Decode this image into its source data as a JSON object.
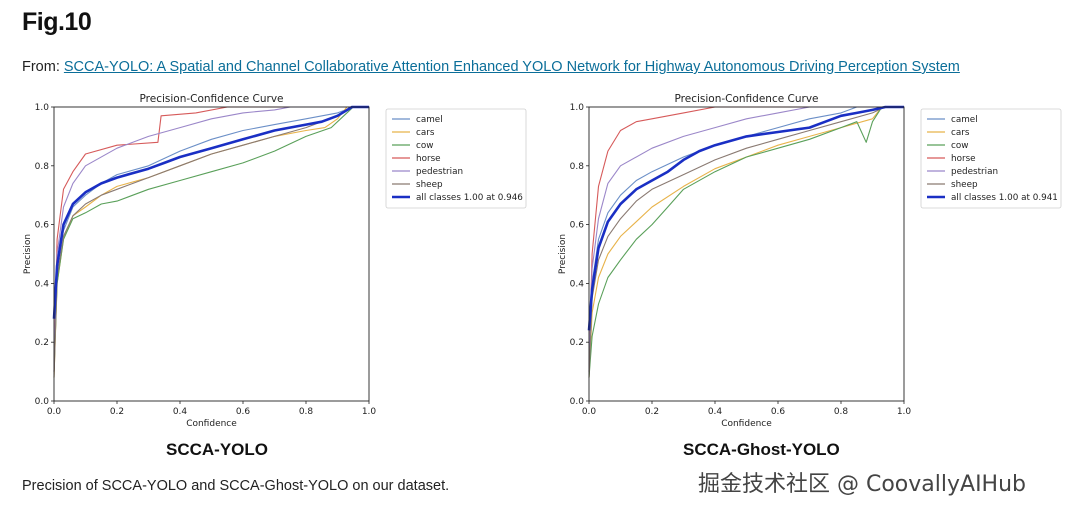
{
  "figure": {
    "label": "Fig.10",
    "from_prefix": "From: ",
    "paper_link": "SCCA-YOLO: A Spatial and Channel Collaborative Attention Enhanced YOLO Network for Highway Autonomous Driving Perception System",
    "caption": "Precision of SCCA-YOLO and SCCA-Ghost-YOLO on our dataset.",
    "watermark": "掘金技术社区 @ CoovallyAIHub"
  },
  "colors": {
    "camel": "#6b8fc7",
    "cars": "#e8b34a",
    "cow": "#5aa05a",
    "horse": "#d65a5a",
    "pedestrian": "#9b87c9",
    "sheep": "#8a7a72",
    "all": "#1a2fc4",
    "link": "#0b6e99"
  },
  "chart_data": [
    {
      "type": "line",
      "panel_label": "SCCA-YOLO",
      "title": "Precision-Confidence Curve",
      "xlabel": "Confidence",
      "ylabel": "Precision",
      "xlim": [
        0,
        1
      ],
      "ylim": [
        0,
        1
      ],
      "xticks": [
        "0.0",
        "0.2",
        "0.4",
        "0.6",
        "0.8",
        "1.0"
      ],
      "yticks": [
        "0.0",
        "0.2",
        "0.4",
        "0.6",
        "0.8",
        "1.0"
      ],
      "grid": false,
      "legend_position": "outside-right",
      "series": [
        {
          "name": "camel",
          "color_key": "camel",
          "width": 1.1,
          "points": [
            [
              0,
              0.1
            ],
            [
              0.01,
              0.45
            ],
            [
              0.03,
              0.58
            ],
            [
              0.06,
              0.66
            ],
            [
              0.1,
              0.7
            ],
            [
              0.15,
              0.74
            ],
            [
              0.2,
              0.77
            ],
            [
              0.3,
              0.8
            ],
            [
              0.4,
              0.85
            ],
            [
              0.5,
              0.89
            ],
            [
              0.6,
              0.92
            ],
            [
              0.7,
              0.94
            ],
            [
              0.8,
              0.96
            ],
            [
              0.9,
              0.98
            ],
            [
              0.95,
              1.0
            ],
            [
              1.0,
              1.0
            ]
          ]
        },
        {
          "name": "cars",
          "color_key": "cars",
          "width": 1.1,
          "points": [
            [
              0,
              0.08
            ],
            [
              0.01,
              0.4
            ],
            [
              0.03,
              0.55
            ],
            [
              0.06,
              0.63
            ],
            [
              0.1,
              0.66
            ],
            [
              0.15,
              0.7
            ],
            [
              0.2,
              0.73
            ],
            [
              0.3,
              0.76
            ],
            [
              0.4,
              0.8
            ],
            [
              0.5,
              0.84
            ],
            [
              0.6,
              0.87
            ],
            [
              0.7,
              0.9
            ],
            [
              0.8,
              0.92
            ],
            [
              0.86,
              0.93
            ],
            [
              0.9,
              0.96
            ],
            [
              0.93,
              1.0
            ],
            [
              1.0,
              1.0
            ]
          ]
        },
        {
          "name": "cow",
          "color_key": "cow",
          "width": 1.1,
          "points": [
            [
              0,
              0.1
            ],
            [
              0.01,
              0.4
            ],
            [
              0.03,
              0.55
            ],
            [
              0.06,
              0.62
            ],
            [
              0.1,
              0.64
            ],
            [
              0.15,
              0.67
            ],
            [
              0.2,
              0.68
            ],
            [
              0.25,
              0.7
            ],
            [
              0.3,
              0.72
            ],
            [
              0.4,
              0.75
            ],
            [
              0.5,
              0.78
            ],
            [
              0.6,
              0.81
            ],
            [
              0.7,
              0.85
            ],
            [
              0.8,
              0.9
            ],
            [
              0.88,
              0.93
            ],
            [
              0.92,
              0.97
            ],
            [
              0.95,
              1.0
            ],
            [
              1.0,
              1.0
            ]
          ]
        },
        {
          "name": "horse",
          "color_key": "horse",
          "width": 1.1,
          "points": [
            [
              0,
              0.1
            ],
            [
              0.01,
              0.55
            ],
            [
              0.03,
              0.72
            ],
            [
              0.06,
              0.78
            ],
            [
              0.1,
              0.84
            ],
            [
              0.2,
              0.87
            ],
            [
              0.33,
              0.88
            ],
            [
              0.34,
              0.97
            ],
            [
              0.45,
              0.98
            ],
            [
              0.55,
              1.0
            ],
            [
              1.0,
              1.0
            ]
          ]
        },
        {
          "name": "pedestrian",
          "color_key": "pedestrian",
          "width": 1.1,
          "points": [
            [
              0,
              0.1
            ],
            [
              0.01,
              0.5
            ],
            [
              0.03,
              0.66
            ],
            [
              0.06,
              0.74
            ],
            [
              0.1,
              0.8
            ],
            [
              0.2,
              0.86
            ],
            [
              0.3,
              0.9
            ],
            [
              0.4,
              0.93
            ],
            [
              0.5,
              0.96
            ],
            [
              0.6,
              0.98
            ],
            [
              0.7,
              0.99
            ],
            [
              0.75,
              1.0
            ],
            [
              1.0,
              1.0
            ]
          ]
        },
        {
          "name": "sheep",
          "color_key": "sheep",
          "width": 1.1,
          "points": [
            [
              0,
              0.08
            ],
            [
              0.01,
              0.42
            ],
            [
              0.03,
              0.56
            ],
            [
              0.06,
              0.63
            ],
            [
              0.1,
              0.67
            ],
            [
              0.15,
              0.7
            ],
            [
              0.2,
              0.72
            ],
            [
              0.3,
              0.76
            ],
            [
              0.4,
              0.8
            ],
            [
              0.5,
              0.84
            ],
            [
              0.6,
              0.87
            ],
            [
              0.7,
              0.9
            ],
            [
              0.8,
              0.93
            ],
            [
              0.9,
              0.97
            ],
            [
              0.95,
              1.0
            ],
            [
              1.0,
              1.0
            ]
          ]
        },
        {
          "name": "all classes 1.00 at 0.946",
          "color_key": "all",
          "width": 2.6,
          "points": [
            [
              0,
              0.28
            ],
            [
              0.01,
              0.46
            ],
            [
              0.03,
              0.6
            ],
            [
              0.06,
              0.67
            ],
            [
              0.1,
              0.71
            ],
            [
              0.15,
              0.74
            ],
            [
              0.2,
              0.76
            ],
            [
              0.3,
              0.79
            ],
            [
              0.35,
              0.81
            ],
            [
              0.4,
              0.83
            ],
            [
              0.5,
              0.86
            ],
            [
              0.6,
              0.89
            ],
            [
              0.7,
              0.92
            ],
            [
              0.8,
              0.94
            ],
            [
              0.85,
              0.95
            ],
            [
              0.9,
              0.97
            ],
            [
              0.946,
              1.0
            ],
            [
              1.0,
              1.0
            ]
          ]
        }
      ]
    },
    {
      "type": "line",
      "panel_label": "SCCA-Ghost-YOLO",
      "title": "Precision-Confidence Curve",
      "xlabel": "Confidence",
      "ylabel": "Precision",
      "xlim": [
        0,
        1
      ],
      "ylim": [
        0,
        1
      ],
      "xticks": [
        "0.0",
        "0.2",
        "0.4",
        "0.6",
        "0.8",
        "1.0"
      ],
      "yticks": [
        "0.0",
        "0.2",
        "0.4",
        "0.6",
        "0.8",
        "1.0"
      ],
      "grid": false,
      "legend_position": "outside-right",
      "series": [
        {
          "name": "camel",
          "color_key": "camel",
          "width": 1.1,
          "points": [
            [
              0,
              0.1
            ],
            [
              0.01,
              0.4
            ],
            [
              0.03,
              0.55
            ],
            [
              0.06,
              0.64
            ],
            [
              0.1,
              0.7
            ],
            [
              0.15,
              0.75
            ],
            [
              0.2,
              0.78
            ],
            [
              0.3,
              0.83
            ],
            [
              0.4,
              0.87
            ],
            [
              0.5,
              0.9
            ],
            [
              0.6,
              0.93
            ],
            [
              0.7,
              0.96
            ],
            [
              0.8,
              0.98
            ],
            [
              0.85,
              1.0
            ],
            [
              1.0,
              1.0
            ]
          ]
        },
        {
          "name": "cars",
          "color_key": "cars",
          "width": 1.1,
          "points": [
            [
              0,
              0.08
            ],
            [
              0.01,
              0.3
            ],
            [
              0.03,
              0.42
            ],
            [
              0.06,
              0.5
            ],
            [
              0.1,
              0.56
            ],
            [
              0.15,
              0.61
            ],
            [
              0.2,
              0.66
            ],
            [
              0.3,
              0.73
            ],
            [
              0.4,
              0.79
            ],
            [
              0.5,
              0.83
            ],
            [
              0.6,
              0.87
            ],
            [
              0.7,
              0.9
            ],
            [
              0.8,
              0.93
            ],
            [
              0.9,
              0.96
            ],
            [
              0.93,
              1.0
            ],
            [
              1.0,
              1.0
            ]
          ]
        },
        {
          "name": "cow",
          "color_key": "cow",
          "width": 1.1,
          "points": [
            [
              0,
              0.08
            ],
            [
              0.01,
              0.22
            ],
            [
              0.03,
              0.33
            ],
            [
              0.06,
              0.42
            ],
            [
              0.1,
              0.48
            ],
            [
              0.15,
              0.55
            ],
            [
              0.2,
              0.6
            ],
            [
              0.25,
              0.66
            ],
            [
              0.3,
              0.72
            ],
            [
              0.4,
              0.78
            ],
            [
              0.5,
              0.83
            ],
            [
              0.6,
              0.86
            ],
            [
              0.7,
              0.89
            ],
            [
              0.8,
              0.93
            ],
            [
              0.85,
              0.95
            ],
            [
              0.88,
              0.88
            ],
            [
              0.9,
              0.95
            ],
            [
              0.93,
              1.0
            ],
            [
              1.0,
              1.0
            ]
          ]
        },
        {
          "name": "horse",
          "color_key": "horse",
          "width": 1.1,
          "points": [
            [
              0,
              0.1
            ],
            [
              0.01,
              0.5
            ],
            [
              0.03,
              0.73
            ],
            [
              0.06,
              0.85
            ],
            [
              0.1,
              0.92
            ],
            [
              0.15,
              0.95
            ],
            [
              0.2,
              0.96
            ],
            [
              0.3,
              0.98
            ],
            [
              0.4,
              1.0
            ],
            [
              1.0,
              1.0
            ]
          ]
        },
        {
          "name": "pedestrian",
          "color_key": "pedestrian",
          "width": 1.1,
          "points": [
            [
              0,
              0.1
            ],
            [
              0.01,
              0.45
            ],
            [
              0.03,
              0.62
            ],
            [
              0.06,
              0.74
            ],
            [
              0.1,
              0.8
            ],
            [
              0.2,
              0.86
            ],
            [
              0.3,
              0.9
            ],
            [
              0.4,
              0.93
            ],
            [
              0.5,
              0.96
            ],
            [
              0.6,
              0.98
            ],
            [
              0.7,
              1.0
            ],
            [
              1.0,
              1.0
            ]
          ]
        },
        {
          "name": "sheep",
          "color_key": "sheep",
          "width": 1.1,
          "points": [
            [
              0,
              0.08
            ],
            [
              0.01,
              0.35
            ],
            [
              0.03,
              0.48
            ],
            [
              0.06,
              0.56
            ],
            [
              0.1,
              0.62
            ],
            [
              0.15,
              0.68
            ],
            [
              0.2,
              0.72
            ],
            [
              0.3,
              0.77
            ],
            [
              0.4,
              0.82
            ],
            [
              0.5,
              0.86
            ],
            [
              0.6,
              0.89
            ],
            [
              0.7,
              0.92
            ],
            [
              0.8,
              0.95
            ],
            [
              0.9,
              0.98
            ],
            [
              0.94,
              1.0
            ],
            [
              1.0,
              1.0
            ]
          ]
        },
        {
          "name": "all classes 1.00 at 0.941",
          "color_key": "all",
          "width": 2.6,
          "points": [
            [
              0,
              0.24
            ],
            [
              0.01,
              0.38
            ],
            [
              0.03,
              0.52
            ],
            [
              0.06,
              0.61
            ],
            [
              0.1,
              0.67
            ],
            [
              0.15,
              0.72
            ],
            [
              0.2,
              0.75
            ],
            [
              0.25,
              0.78
            ],
            [
              0.3,
              0.82
            ],
            [
              0.35,
              0.85
            ],
            [
              0.4,
              0.87
            ],
            [
              0.5,
              0.9
            ],
            [
              0.6,
              0.915
            ],
            [
              0.7,
              0.93
            ],
            [
              0.75,
              0.95
            ],
            [
              0.8,
              0.97
            ],
            [
              0.85,
              0.98
            ],
            [
              0.9,
              0.99
            ],
            [
              0.941,
              1.0
            ],
            [
              1.0,
              1.0
            ]
          ]
        }
      ]
    }
  ]
}
